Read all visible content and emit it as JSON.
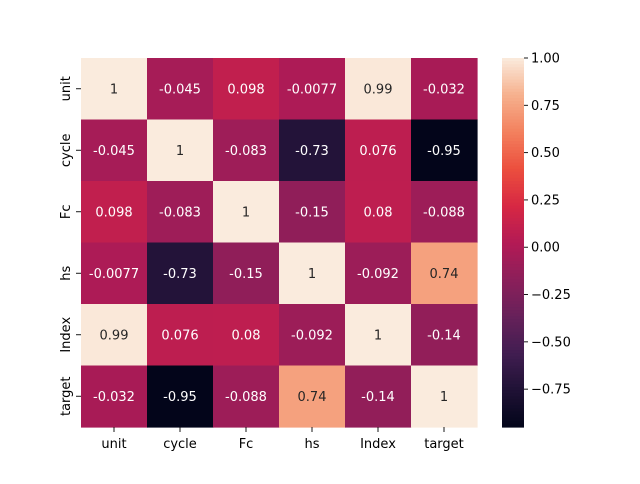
{
  "chart_data": {
    "type": "heatmap",
    "title": "",
    "xlabel": "",
    "ylabel": "",
    "x_categories": [
      "unit",
      "cycle",
      "Fc",
      "hs",
      "Index",
      "target"
    ],
    "y_categories": [
      "unit",
      "cycle",
      "Fc",
      "hs",
      "Index",
      "target"
    ],
    "values": [
      [
        1,
        -0.045,
        0.098,
        -0.0077,
        0.99,
        -0.032
      ],
      [
        -0.045,
        1,
        -0.083,
        -0.73,
        0.076,
        -0.95
      ],
      [
        0.098,
        -0.083,
        1,
        -0.15,
        0.08,
        -0.088
      ],
      [
        -0.0077,
        -0.73,
        -0.15,
        1,
        -0.092,
        0.74
      ],
      [
        0.99,
        0.076,
        0.08,
        -0.092,
        1,
        -0.14
      ],
      [
        -0.032,
        -0.95,
        -0.088,
        0.74,
        -0.14,
        1
      ]
    ],
    "annotations": [
      [
        "1",
        "-0.045",
        "0.098",
        "-0.0077",
        "0.99",
        "-0.032"
      ],
      [
        "-0.045",
        "1",
        "-0.083",
        "-0.73",
        "0.076",
        "-0.95"
      ],
      [
        "0.098",
        "-0.083",
        "1",
        "-0.15",
        "0.08",
        "-0.088"
      ],
      [
        "-0.0077",
        "-0.73",
        "-0.15",
        "1",
        "-0.092",
        "0.74"
      ],
      [
        "0.99",
        "0.076",
        "0.08",
        "-0.092",
        "1",
        "-0.14"
      ],
      [
        "-0.032",
        "-0.95",
        "-0.088",
        "0.74",
        "-0.14",
        "1"
      ]
    ],
    "colormap": "rocket",
    "colorbar": {
      "min": -0.95,
      "max": 1,
      "ticks": [
        1.0,
        0.75,
        0.5,
        0.25,
        0.0,
        -0.25,
        -0.5,
        -0.75
      ],
      "tick_labels": [
        "1.00",
        "0.75",
        "0.50",
        "0.25",
        "0.00",
        "−0.25",
        "−0.50",
        "−0.75"
      ]
    }
  }
}
